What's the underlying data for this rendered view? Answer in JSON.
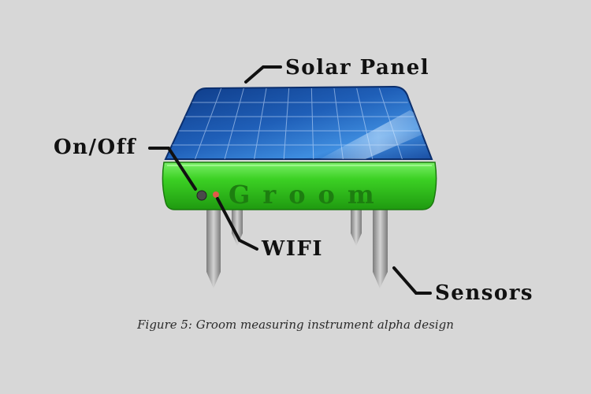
{
  "figure": {
    "caption": "Figure 5: Groom measuring instrument alpha design",
    "device_brand": "Groom",
    "labels": {
      "solar_panel": "Solar Panel",
      "on_off": "On/Off",
      "wifi": "WIFI",
      "sensors": "Sensors"
    }
  },
  "colors": {
    "background": "#d7d7d7",
    "panel_blue": "#1f5fb8",
    "base_green": "#2fbf1a",
    "sensor_gray": "#a9a9a9",
    "wifi_led": "#e05a4a",
    "leader_lines": "#111111"
  }
}
